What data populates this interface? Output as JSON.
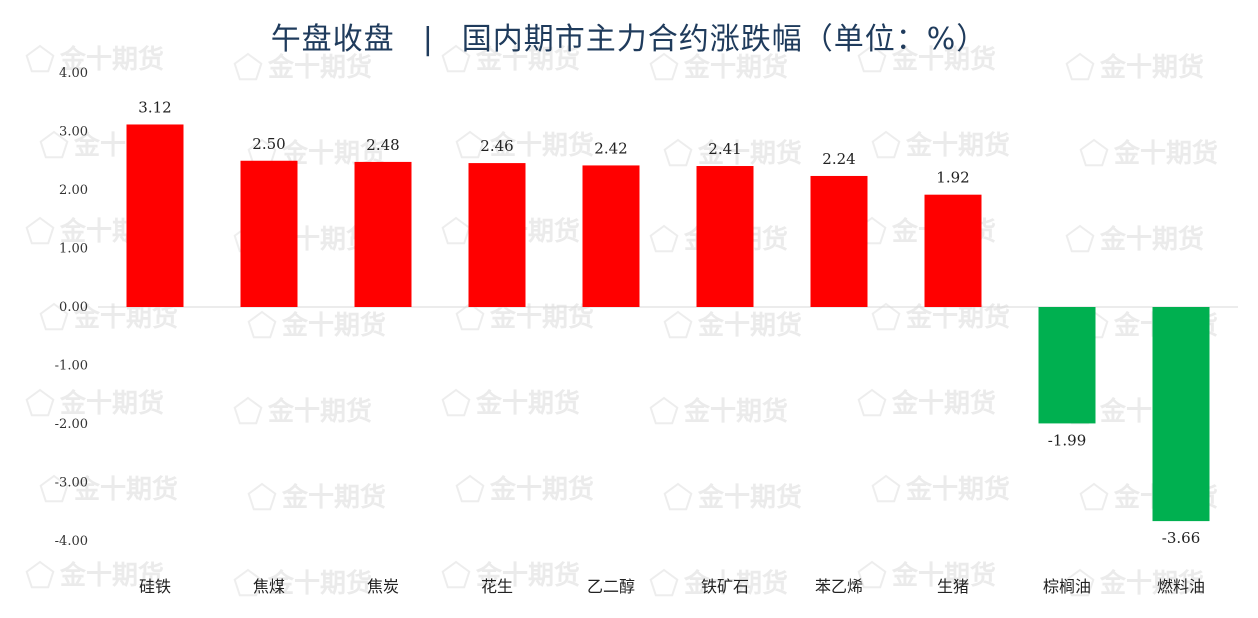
{
  "title": {
    "left": "午盘收盘",
    "separator": "|",
    "right": "国内期市主力合约涨跌幅（单位：%）"
  },
  "watermark": {
    "text": "金十期货",
    "icon": "pentagon-logo-icon"
  },
  "colors": {
    "positive": "#ff0000",
    "negative": "#00b050",
    "title": "#1f3b5c"
  },
  "chart_data": {
    "type": "bar",
    "categories": [
      "硅铁",
      "焦煤",
      "焦炭",
      "花生",
      "乙二醇",
      "铁矿石",
      "苯乙烯",
      "生猪",
      "棕榈油",
      "燃料油"
    ],
    "values": [
      3.12,
      2.5,
      2.48,
      2.46,
      2.42,
      2.41,
      2.24,
      1.92,
      -1.99,
      -3.66
    ],
    "value_labels": [
      "3.12",
      "2.50",
      "2.48",
      "2.46",
      "2.42",
      "2.41",
      "2.24",
      "1.92",
      "-1.99",
      "-3.66"
    ],
    "ylim": [
      -4,
      4
    ],
    "yticks": [
      4,
      3,
      2,
      1,
      0,
      -1,
      -2,
      -3,
      -4
    ],
    "ytick_labels": [
      "4.00",
      "3.00",
      "2.00",
      "1.00",
      "0.00",
      "-1.00",
      "-2.00",
      "-3.00",
      "-4.00"
    ],
    "grid": false,
    "legend": "none"
  }
}
